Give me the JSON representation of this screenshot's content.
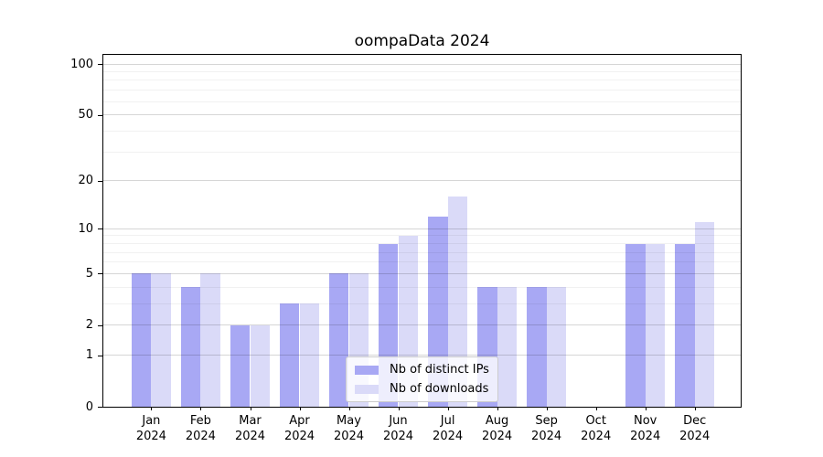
{
  "chart_data": {
    "type": "bar",
    "title": "oompaData 2024",
    "categories": [
      "Jan",
      "Feb",
      "Mar",
      "Apr",
      "May",
      "Jun",
      "Jul",
      "Aug",
      "Sep",
      "Oct",
      "Nov",
      "Dec"
    ],
    "category_year": "2024",
    "series": [
      {
        "name": "Nb of distinct IPs",
        "color": "#a8a8f4",
        "values": [
          5,
          4,
          2,
          3,
          5,
          8,
          12,
          4,
          4,
          0,
          8,
          8
        ]
      },
      {
        "name": "Nb of downloads",
        "color": "#dadaf8",
        "values": [
          5,
          5,
          2,
          3,
          5,
          9,
          16,
          4,
          4,
          0,
          8,
          11
        ]
      }
    ],
    "yscale": "log1p",
    "yticks": [
      0,
      1,
      2,
      5,
      10,
      20,
      50,
      100
    ],
    "ytick_labels": [
      "0",
      "1",
      "2",
      "5",
      "10",
      "20",
      "50",
      "100"
    ],
    "minor_gridlines": [
      3,
      4,
      6,
      7,
      8,
      9,
      30,
      40,
      60,
      70,
      80,
      90
    ],
    "ylim": [
      0,
      113
    ],
    "xlabel": "",
    "ylabel": "",
    "grid": true,
    "legend_position": "lower center",
    "frame_color": "#000000",
    "background_color": "#ffffff"
  }
}
